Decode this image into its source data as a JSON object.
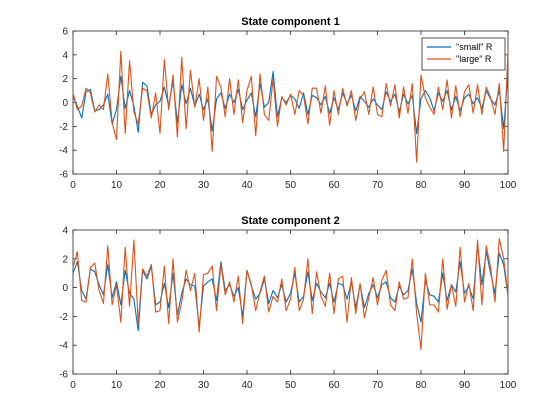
{
  "chart_data": [
    {
      "type": "line",
      "title": "State component 1",
      "xlim": [
        0,
        100
      ],
      "ylim": [
        -6,
        6
      ],
      "xticks": [
        0,
        10,
        20,
        30,
        40,
        50,
        60,
        70,
        80,
        90,
        100
      ],
      "yticks": [
        -6,
        -4,
        -2,
        0,
        2,
        4,
        6
      ],
      "grid": false,
      "legend_location": "top-right",
      "series": [
        {
          "name": "\"small\" R",
          "color": "#0072BD",
          "x": [
            0,
            1,
            2,
            3,
            4,
            5,
            6,
            7,
            8,
            9,
            10,
            11,
            12,
            13,
            14,
            15,
            16,
            17,
            18,
            19,
            20,
            21,
            22,
            23,
            24,
            25,
            26,
            27,
            28,
            29,
            30,
            31,
            32,
            33,
            34,
            35,
            36,
            37,
            38,
            39,
            40,
            41,
            42,
            43,
            44,
            45,
            46,
            47,
            48,
            49,
            50,
            51,
            52,
            53,
            54,
            55,
            56,
            57,
            58,
            59,
            60,
            61,
            62,
            63,
            64,
            65,
            66,
            67,
            68,
            69,
            70,
            71,
            72,
            73,
            74,
            75,
            76,
            77,
            78,
            79,
            80,
            81,
            82,
            83,
            84,
            85,
            86,
            87,
            88,
            89,
            90,
            91,
            92,
            93,
            94,
            95,
            96,
            97,
            98,
            99,
            100
          ],
          "values": [
            0.5,
            -0.3,
            -1.3,
            0.9,
            1.1,
            -0.7,
            -0.6,
            -0.2,
            0.7,
            -1.8,
            -0.6,
            2.2,
            -0.5,
            1.0,
            -0.3,
            -2.5,
            1.7,
            1.4,
            -1.0,
            -0.2,
            0.1,
            1.3,
            -0.3,
            1.8,
            -1.7,
            1.5,
            -0.1,
            1.2,
            -0.3,
            0.7,
            -0.6,
            0.3,
            -2.4,
            0.3,
            0.8,
            -0.5,
            0.7,
            0.0,
            1.1,
            -0.6,
            0.2,
            0.8,
            -1.2,
            1.6,
            -0.4,
            0.0,
            2.6,
            -1.2,
            0.4,
            0.0,
            0.6,
            0.3,
            -0.5,
            0.8,
            -1.0,
            0.6,
            0.4,
            -0.2,
            0.5,
            -0.9,
            0.4,
            -0.6,
            0.8,
            -0.1,
            0.6,
            -0.7,
            0.5,
            0.1,
            -0.4,
            0.3,
            -0.2,
            -0.6,
            0.9,
            0.1,
            0.7,
            -0.8,
            0.7,
            -0.1,
            0.6,
            -2.6,
            0.3,
            1.0,
            0.4,
            -0.7,
            0.8,
            0.1,
            1.0,
            -0.6,
            0.5,
            -0.7,
            0.4,
            0.7,
            -0.1,
            0.4,
            -0.5,
            1.0,
            0.3,
            -0.2,
            1.0,
            -2.2,
            2.5
          ]
        },
        {
          "name": "\"large\" R",
          "color": "#D95319",
          "x": [
            0,
            1,
            2,
            3,
            4,
            5,
            6,
            7,
            8,
            9,
            10,
            11,
            12,
            13,
            14,
            15,
            16,
            17,
            18,
            19,
            20,
            21,
            22,
            23,
            24,
            25,
            26,
            27,
            28,
            29,
            30,
            31,
            32,
            33,
            34,
            35,
            36,
            37,
            38,
            39,
            40,
            41,
            42,
            43,
            44,
            45,
            46,
            47,
            48,
            49,
            50,
            51,
            52,
            53,
            54,
            55,
            56,
            57,
            58,
            59,
            60,
            61,
            62,
            63,
            64,
            65,
            66,
            67,
            68,
            69,
            70,
            71,
            72,
            73,
            74,
            75,
            76,
            77,
            78,
            79,
            80,
            81,
            82,
            83,
            84,
            85,
            86,
            87,
            88,
            89,
            90,
            91,
            92,
            93,
            94,
            95,
            96,
            97,
            98,
            99,
            100
          ],
          "values": [
            0.8,
            -0.6,
            -0.3,
            1.2,
            0.8,
            -0.8,
            -0.2,
            -0.6,
            2.4,
            -1.7,
            -3.1,
            4.3,
            -2.6,
            3.5,
            -0.8,
            -1.8,
            1.2,
            1.0,
            -1.3,
            0.8,
            -2.6,
            3.6,
            -0.6,
            2.3,
            -2.9,
            3.8,
            -2.2,
            2.7,
            -0.4,
            2.0,
            -1.5,
            1.3,
            -4.1,
            2.2,
            1.3,
            -1.2,
            2.0,
            -1.0,
            1.9,
            -1.7,
            1.0,
            2.2,
            -2.8,
            2.4,
            -1.0,
            -1.5,
            2.0,
            -2.0,
            0.5,
            -0.2,
            0.7,
            -1.0,
            1.0,
            0.6,
            -1.8,
            1.2,
            1.2,
            -0.9,
            1.4,
            -1.9,
            1.0,
            -1.0,
            1.2,
            -0.3,
            1.0,
            -1.5,
            0.3,
            0.9,
            -1.0,
            1.3,
            -1.0,
            -1.2,
            1.6,
            -0.3,
            1.5,
            -1.3,
            1.3,
            -0.9,
            1.6,
            -5.0,
            2.3,
            0.4,
            -0.4,
            -1.0,
            1.3,
            -0.6,
            1.9,
            -1.3,
            1.4,
            -1.2,
            0.9,
            1.5,
            -0.9,
            1.5,
            -1.0,
            1.3,
            0.4,
            -1.0,
            1.6,
            -4.1,
            4.3
          ]
        }
      ]
    },
    {
      "type": "line",
      "title": "State component 2",
      "xlim": [
        0,
        100
      ],
      "ylim": [
        -6,
        4
      ],
      "xticks": [
        0,
        10,
        20,
        30,
        40,
        50,
        60,
        70,
        80,
        90,
        100
      ],
      "yticks": [
        -6,
        -4,
        -2,
        0,
        2,
        4
      ],
      "grid": false,
      "series": [
        {
          "color": "#0072BD",
          "x": [
            0,
            1,
            2,
            3,
            4,
            5,
            6,
            7,
            8,
            9,
            10,
            11,
            12,
            13,
            14,
            15,
            16,
            17,
            18,
            19,
            20,
            21,
            22,
            23,
            24,
            25,
            26,
            27,
            28,
            29,
            30,
            31,
            32,
            33,
            34,
            35,
            36,
            37,
            38,
            39,
            40,
            41,
            42,
            43,
            44,
            45,
            46,
            47,
            48,
            49,
            50,
            51,
            52,
            53,
            54,
            55,
            56,
            57,
            58,
            59,
            60,
            61,
            62,
            63,
            64,
            65,
            66,
            67,
            68,
            69,
            70,
            71,
            72,
            73,
            74,
            75,
            76,
            77,
            78,
            79,
            80,
            81,
            82,
            83,
            84,
            85,
            86,
            87,
            88,
            89,
            90,
            91,
            92,
            93,
            94,
            95,
            96,
            97,
            98,
            99,
            100
          ],
          "values": [
            1.0,
            1.8,
            -0.2,
            -0.8,
            1.3,
            1.1,
            0.2,
            -0.5,
            1.6,
            -0.7,
            0.4,
            -1.2,
            1.2,
            -0.4,
            -0.8,
            -3.0,
            1.2,
            0.6,
            1.5,
            -1.2,
            -1.0,
            0.3,
            -1.4,
            1.0,
            -1.9,
            -0.4,
            0.6,
            0.2,
            0.1,
            -2.7,
            0.1,
            0.4,
            0.6,
            -0.9,
            1.8,
            -0.2,
            0.2,
            -0.6,
            0.0,
            -2.0,
            1.2,
            0.1,
            -0.8,
            -0.4,
            0.6,
            -1.1,
            -0.2,
            -0.7,
            0.2,
            -1.0,
            -0.4,
            1.0,
            -1.0,
            -0.6,
            1.1,
            -0.9,
            0.3,
            -0.3,
            -0.7,
            0.3,
            -1.0,
            0.3,
            0.2,
            -0.8,
            0.4,
            -1.4,
            0.2,
            -1.4,
            -0.4,
            0.2,
            -0.7,
            0.2,
            0.4,
            -0.7,
            -1.0,
            0.1,
            -0.5,
            -0.2,
            1.3,
            -1.1,
            -2.4,
            0.5,
            -0.5,
            -0.6,
            -1.0,
            1.0,
            -0.9,
            0.2,
            -0.3,
            1.8,
            -0.4,
            0.1,
            -0.8,
            3.0,
            0.2,
            2.5,
            1.0,
            -0.4,
            2.4,
            1.6,
            -0.6
          ]
        },
        {
          "color": "#D95319",
          "x": [
            0,
            1,
            2,
            3,
            4,
            5,
            6,
            7,
            8,
            9,
            10,
            11,
            12,
            13,
            14,
            15,
            16,
            17,
            18,
            19,
            20,
            21,
            22,
            23,
            24,
            25,
            26,
            27,
            28,
            29,
            30,
            31,
            32,
            33,
            34,
            35,
            36,
            37,
            38,
            39,
            40,
            41,
            42,
            43,
            44,
            45,
            46,
            47,
            48,
            49,
            50,
            51,
            52,
            53,
            54,
            55,
            56,
            57,
            58,
            59,
            60,
            61,
            62,
            63,
            64,
            65,
            66,
            67,
            68,
            69,
            70,
            71,
            72,
            73,
            74,
            75,
            76,
            77,
            78,
            79,
            80,
            81,
            82,
            83,
            84,
            85,
            86,
            87,
            88,
            89,
            90,
            91,
            92,
            93,
            94,
            95,
            96,
            97,
            98,
            99,
            100
          ],
          "values": [
            1.4,
            2.5,
            -0.9,
            -1.0,
            1.4,
            1.7,
            -0.2,
            -1.1,
            2.9,
            -1.2,
            0.2,
            -2.4,
            2.8,
            -1.3,
            3.3,
            -2.5,
            1.3,
            0.8,
            1.6,
            -1.7,
            -1.6,
            1.5,
            -2.5,
            2.0,
            -2.4,
            -1.0,
            1.2,
            -0.2,
            1.0,
            -3.1,
            0.9,
            1.0,
            1.5,
            -1.6,
            1.6,
            -0.5,
            0.4,
            -1.0,
            0.8,
            -2.5,
            1.2,
            0.2,
            -1.6,
            -0.3,
            0.8,
            -1.7,
            -0.6,
            -1.0,
            0.6,
            -1.6,
            -0.8,
            1.4,
            -1.6,
            -0.8,
            2.0,
            -1.8,
            1.1,
            -0.6,
            -1.3,
            1.0,
            -1.8,
            0.6,
            0.8,
            -2.4,
            0.7,
            -1.8,
            0.3,
            -2.1,
            -0.7,
            0.7,
            -1.2,
            0.5,
            1.2,
            -1.2,
            -1.6,
            0.4,
            -0.8,
            -0.7,
            2.0,
            -1.8,
            -4.3,
            1.0,
            -1.2,
            -1.2,
            -1.7,
            2.0,
            -1.5,
            0.2,
            -1.3,
            2.8,
            -1.0,
            0.3,
            -1.6,
            3.3,
            -1.2,
            2.9,
            1.4,
            -1.0,
            3.4,
            2.0,
            -0.5
          ]
        }
      ]
    }
  ]
}
